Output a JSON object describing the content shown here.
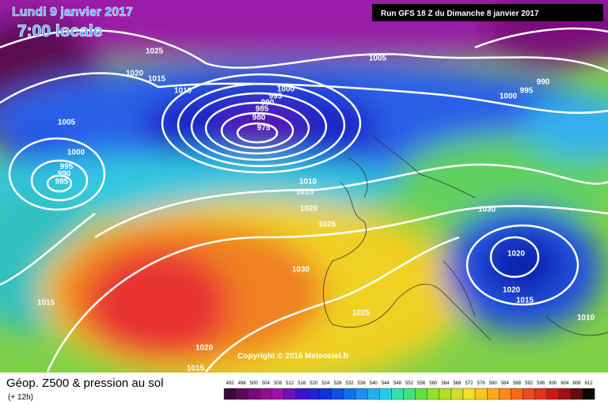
{
  "header": {
    "date": "Lundi 9 janvier 2017",
    "time": "7:00 locale",
    "run": "Run GFS 18 Z du Dimanche 8 janvier 2017"
  },
  "isobar_labels": [
    "1025",
    "1020",
    "1015",
    "1010",
    "1005",
    "1000",
    "995",
    "990",
    "985",
    "980",
    "975",
    "1005",
    "1000",
    "995",
    "990",
    "985",
    "1010",
    "1015",
    "1020",
    "1025",
    "1030",
    "1020",
    "1030",
    "1020",
    "1015",
    "1010",
    "1015",
    "1025",
    "1020",
    "1015",
    "990",
    "995",
    "1000"
  ],
  "copyright": "Copyright © 2016 Meteociel.fr",
  "footer": {
    "title": "Géop. Z500 & pression au sol",
    "lead": "(+ 12h)"
  },
  "scale": {
    "labels": [
      "492",
      "496",
      "500",
      "504",
      "508",
      "512",
      "516",
      "520",
      "524",
      "528",
      "532",
      "536",
      "540",
      "544",
      "548",
      "552",
      "556",
      "560",
      "564",
      "568",
      "572",
      "576",
      "580",
      "584",
      "588",
      "592",
      "596",
      "600",
      "604",
      "608",
      "612"
    ],
    "colors": [
      "#3a0a3a",
      "#5a0a5a",
      "#7a0a7a",
      "#900e90",
      "#a010a8",
      "#7010c0",
      "#4010d0",
      "#2020d8",
      "#1030e0",
      "#1050e8",
      "#1070f0",
      "#1890f0",
      "#20b0f0",
      "#20d0e0",
      "#30e0b0",
      "#40e080",
      "#60e040",
      "#90e030",
      "#b0e020",
      "#d0e020",
      "#f0e020",
      "#f8c818",
      "#f8a818",
      "#f88818",
      "#f86818",
      "#f04820",
      "#e83020",
      "#d01818",
      "#a01010",
      "#601010",
      "#100808"
    ]
  }
}
